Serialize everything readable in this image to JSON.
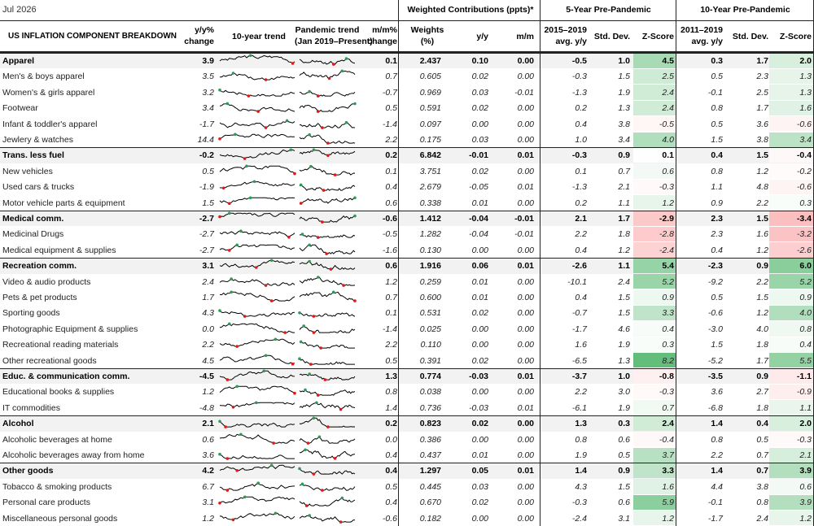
{
  "date_label": "Jul 2026",
  "group_headers": {
    "weighted": "Weighted Contributions (ppts)*",
    "five_year": "5-Year Pre-Pandemic",
    "ten_year": "10-Year Pre-Pandemic"
  },
  "column_headers": {
    "component": "US INFLATION COMPONENT BREAKDOWN",
    "yy_1": "y/y%",
    "yy_2": "change",
    "trend10": "10-year trend",
    "pand_1": "Pandemic trend",
    "pand_2": "(Jan 2019–Present)",
    "mm_1": "m/m%",
    "mm_2": "change",
    "w_1": "Weights",
    "w_2": "(%)",
    "cyy": "y/y",
    "cmm": "m/m",
    "avg5_1": "2015–2019",
    "avg5_2": "avg. y/y",
    "sd5": "Std. Dev.",
    "z5": "Z-Score",
    "avg10_1": "2011–2019",
    "avg10_2": "avg. y/y",
    "sd10": "Std. Dev.",
    "z10": "Z-Score"
  },
  "colors": {
    "shade_bg": "#f2f2f2",
    "positive_z": "#63be7b",
    "negative_z": "#f8696b",
    "spark_line": "#000000",
    "spark_high": "#2e9a5a",
    "spark_low": "#e01818"
  },
  "rows": [
    {
      "name": "Apparel",
      "bold": true,
      "yy": "3.9",
      "mm": "0.1",
      "w": "2.437",
      "cyy": "0.10",
      "cmm": "0.00",
      "a5": "-0.5",
      "s5": "1.0",
      "z5": "4.5",
      "a10": "0.3",
      "s10": "1.7",
      "z10": "2.0"
    },
    {
      "name": "Men's & boys apparel",
      "bold": false,
      "yy": "3.5",
      "mm": "0.7",
      "w": "0.605",
      "cyy": "0.02",
      "cmm": "0.00",
      "a5": "-0.3",
      "s5": "1.5",
      "z5": "2.5",
      "a10": "0.5",
      "s10": "2.3",
      "z10": "1.3"
    },
    {
      "name": "Women's & girls apparel",
      "bold": false,
      "yy": "3.2",
      "mm": "-0.7",
      "w": "0.969",
      "cyy": "0.03",
      "cmm": "-0.01",
      "a5": "-1.3",
      "s5": "1.9",
      "z5": "2.4",
      "a10": "-0.1",
      "s10": "2.5",
      "z10": "1.3"
    },
    {
      "name": "Footwear",
      "bold": false,
      "yy": "3.4",
      "mm": "0.5",
      "w": "0.591",
      "cyy": "0.02",
      "cmm": "0.00",
      "a5": "0.2",
      "s5": "1.3",
      "z5": "2.4",
      "a10": "0.8",
      "s10": "1.7",
      "z10": "1.6"
    },
    {
      "name": "Infant & toddler's apparel",
      "bold": false,
      "yy": "-1.7",
      "mm": "-1.4",
      "w": "0.097",
      "cyy": "0.00",
      "cmm": "0.00",
      "a5": "0.4",
      "s5": "3.8",
      "z5": "-0.5",
      "a10": "0.5",
      "s10": "3.6",
      "z10": "-0.6"
    },
    {
      "name": "Jewlery & watches",
      "bold": false,
      "yy": "14.4",
      "mm": "2.2",
      "w": "0.175",
      "cyy": "0.03",
      "cmm": "0.00",
      "a5": "1.0",
      "s5": "3.4",
      "z5": "4.0",
      "a10": "1.5",
      "s10": "3.8",
      "z10": "3.4"
    },
    {
      "name": "Trans. less fuel",
      "bold": true,
      "yy": "-0.2",
      "mm": "0.2",
      "w": "6.842",
      "cyy": "-0.01",
      "cmm": "0.01",
      "a5": "-0.3",
      "s5": "0.9",
      "z5": "0.1",
      "a10": "0.4",
      "s10": "1.5",
      "z10": "-0.4"
    },
    {
      "name": "New vehicles",
      "bold": false,
      "yy": "0.5",
      "mm": "0.1",
      "w": "3.751",
      "cyy": "0.02",
      "cmm": "0.00",
      "a5": "0.1",
      "s5": "0.7",
      "z5": "0.6",
      "a10": "0.8",
      "s10": "1.2",
      "z10": "-0.2"
    },
    {
      "name": "Used cars & trucks",
      "bold": false,
      "yy": "-1.9",
      "mm": "0.4",
      "w": "2.679",
      "cyy": "-0.05",
      "cmm": "0.01",
      "a5": "-1.3",
      "s5": "2.1",
      "z5": "-0.3",
      "a10": "1.1",
      "s10": "4.8",
      "z10": "-0.6"
    },
    {
      "name": "Motor vehicle parts & equipment",
      "bold": false,
      "yy": "1.5",
      "mm": "0.6",
      "w": "0.338",
      "cyy": "0.01",
      "cmm": "0.00",
      "a5": "0.2",
      "s5": "1.1",
      "z5": "1.2",
      "a10": "0.9",
      "s10": "2.2",
      "z10": "0.3"
    },
    {
      "name": "Medical comm.",
      "bold": true,
      "yy": "-2.7",
      "mm": "-0.6",
      "w": "1.412",
      "cyy": "-0.04",
      "cmm": "-0.01",
      "a5": "2.1",
      "s5": "1.7",
      "z5": "-2.9",
      "a10": "2.3",
      "s10": "1.5",
      "z10": "-3.4"
    },
    {
      "name": "Medicinal Drugs",
      "bold": false,
      "yy": "-2.7",
      "mm": "-0.5",
      "w": "1.282",
      "cyy": "-0.04",
      "cmm": "-0.01",
      "a5": "2.2",
      "s5": "1.8",
      "z5": "-2.8",
      "a10": "2.3",
      "s10": "1.6",
      "z10": "-3.2"
    },
    {
      "name": "Medical equipment & supplies",
      "bold": false,
      "yy": "-2.7",
      "mm": "-1.6",
      "w": "0.130",
      "cyy": "0.00",
      "cmm": "0.00",
      "a5": "0.4",
      "s5": "1.2",
      "z5": "-2.4",
      "a10": "0.4",
      "s10": "1.2",
      "z10": "-2.6"
    },
    {
      "name": "Recreation comm.",
      "bold": true,
      "yy": "3.1",
      "mm": "0.6",
      "w": "1.916",
      "cyy": "0.06",
      "cmm": "0.01",
      "a5": "-2.6",
      "s5": "1.1",
      "z5": "5.4",
      "a10": "-2.3",
      "s10": "0.9",
      "z10": "6.0"
    },
    {
      "name": "Video & audio products",
      "bold": false,
      "yy": "2.4",
      "mm": "1.2",
      "w": "0.259",
      "cyy": "0.01",
      "cmm": "0.00",
      "a5": "-10.1",
      "s5": "2.4",
      "z5": "5.2",
      "a10": "-9.2",
      "s10": "2.2",
      "z10": "5.2"
    },
    {
      "name": "Pets & pet products",
      "bold": false,
      "yy": "1.7",
      "mm": "0.7",
      "w": "0.600",
      "cyy": "0.01",
      "cmm": "0.00",
      "a5": "0.4",
      "s5": "1.5",
      "z5": "0.9",
      "a10": "0.5",
      "s10": "1.5",
      "z10": "0.9"
    },
    {
      "name": "Sporting goods",
      "bold": false,
      "yy": "4.3",
      "mm": "0.1",
      "w": "0.531",
      "cyy": "0.02",
      "cmm": "0.00",
      "a5": "-0.7",
      "s5": "1.5",
      "z5": "3.3",
      "a10": "-0.6",
      "s10": "1.2",
      "z10": "4.0"
    },
    {
      "name": "Photographic Equipment & supplies",
      "bold": false,
      "yy": "0.0",
      "mm": "-1.4",
      "w": "0.025",
      "cyy": "0.00",
      "cmm": "0.00",
      "a5": "-1.7",
      "s5": "4.6",
      "z5": "0.4",
      "a10": "-3.0",
      "s10": "4.0",
      "z10": "0.8"
    },
    {
      "name": "Recreational reading materials",
      "bold": false,
      "yy": "2.2",
      "mm": "2.2",
      "w": "0.110",
      "cyy": "0.00",
      "cmm": "0.00",
      "a5": "1.6",
      "s5": "1.9",
      "z5": "0.3",
      "a10": "1.5",
      "s10": "1.8",
      "z10": "0.4"
    },
    {
      "name": "Other recreational goods",
      "bold": false,
      "yy": "4.5",
      "mm": "0.5",
      "w": "0.391",
      "cyy": "0.02",
      "cmm": "0.00",
      "a5": "-6.5",
      "s5": "1.3",
      "z5": "8.2",
      "a10": "-5.2",
      "s10": "1.7",
      "z10": "5.5"
    },
    {
      "name": "Educ. & communication comm.",
      "bold": true,
      "yy": "-4.5",
      "mm": "1.3",
      "w": "0.774",
      "cyy": "-0.03",
      "cmm": "0.01",
      "a5": "-3.7",
      "s5": "1.0",
      "z5": "-0.8",
      "a10": "-3.5",
      "s10": "0.9",
      "z10": "-1.1"
    },
    {
      "name": "Educational books & supplies",
      "bold": false,
      "yy": "1.2",
      "mm": "0.8",
      "w": "0.038",
      "cyy": "0.00",
      "cmm": "0.00",
      "a5": "2.2",
      "s5": "3.0",
      "z5": "-0.3",
      "a10": "3.6",
      "s10": "2.7",
      "z10": "-0.9"
    },
    {
      "name": "IT commodities",
      "bold": false,
      "yy": "-4.8",
      "mm": "1.4",
      "w": "0.736",
      "cyy": "-0.03",
      "cmm": "0.01",
      "a5": "-6.1",
      "s5": "1.9",
      "z5": "0.7",
      "a10": "-6.8",
      "s10": "1.8",
      "z10": "1.1"
    },
    {
      "name": "Alcohol",
      "bold": true,
      "yy": "2.1",
      "mm": "0.2",
      "w": "0.823",
      "cyy": "0.02",
      "cmm": "0.00",
      "a5": "1.3",
      "s5": "0.3",
      "z5": "2.4",
      "a10": "1.4",
      "s10": "0.4",
      "z10": "2.0"
    },
    {
      "name": "Alcoholic beverages at home",
      "bold": false,
      "yy": "0.6",
      "mm": "0.0",
      "w": "0.386",
      "cyy": "0.00",
      "cmm": "0.00",
      "a5": "0.8",
      "s5": "0.6",
      "z5": "-0.4",
      "a10": "0.8",
      "s10": "0.5",
      "z10": "-0.3"
    },
    {
      "name": "Alcoholic beverages away from home",
      "bold": false,
      "yy": "3.6",
      "mm": "0.4",
      "w": "0.437",
      "cyy": "0.01",
      "cmm": "0.00",
      "a5": "1.9",
      "s5": "0.5",
      "z5": "3.7",
      "a10": "2.2",
      "s10": "0.7",
      "z10": "2.1"
    },
    {
      "name": "Other goods",
      "bold": true,
      "yy": "4.2",
      "mm": "0.4",
      "w": "1.297",
      "cyy": "0.05",
      "cmm": "0.01",
      "a5": "1.4",
      "s5": "0.9",
      "z5": "3.3",
      "a10": "1.4",
      "s10": "0.7",
      "z10": "3.9"
    },
    {
      "name": "Tobacco & smoking products",
      "bold": false,
      "yy": "6.7",
      "mm": "0.5",
      "w": "0.445",
      "cyy": "0.03",
      "cmm": "0.00",
      "a5": "4.3",
      "s5": "1.5",
      "z5": "1.6",
      "a10": "4.4",
      "s10": "3.8",
      "z10": "0.6"
    },
    {
      "name": "Personal care products",
      "bold": false,
      "yy": "3.1",
      "mm": "0.4",
      "w": "0.670",
      "cyy": "0.02",
      "cmm": "0.00",
      "a5": "-0.3",
      "s5": "0.6",
      "z5": "5.9",
      "a10": "-0.1",
      "s10": "0.8",
      "z10": "3.9"
    },
    {
      "name": "Miscellaneous personal goods",
      "bold": false,
      "yy": "1.2",
      "mm": "-0.6",
      "w": "0.182",
      "cyy": "0.00",
      "cmm": "0.00",
      "a5": "-2.4",
      "s5": "3.1",
      "z5": "1.2",
      "a10": "-1.7",
      "s10": "2.4",
      "z10": "1.2"
    }
  ]
}
